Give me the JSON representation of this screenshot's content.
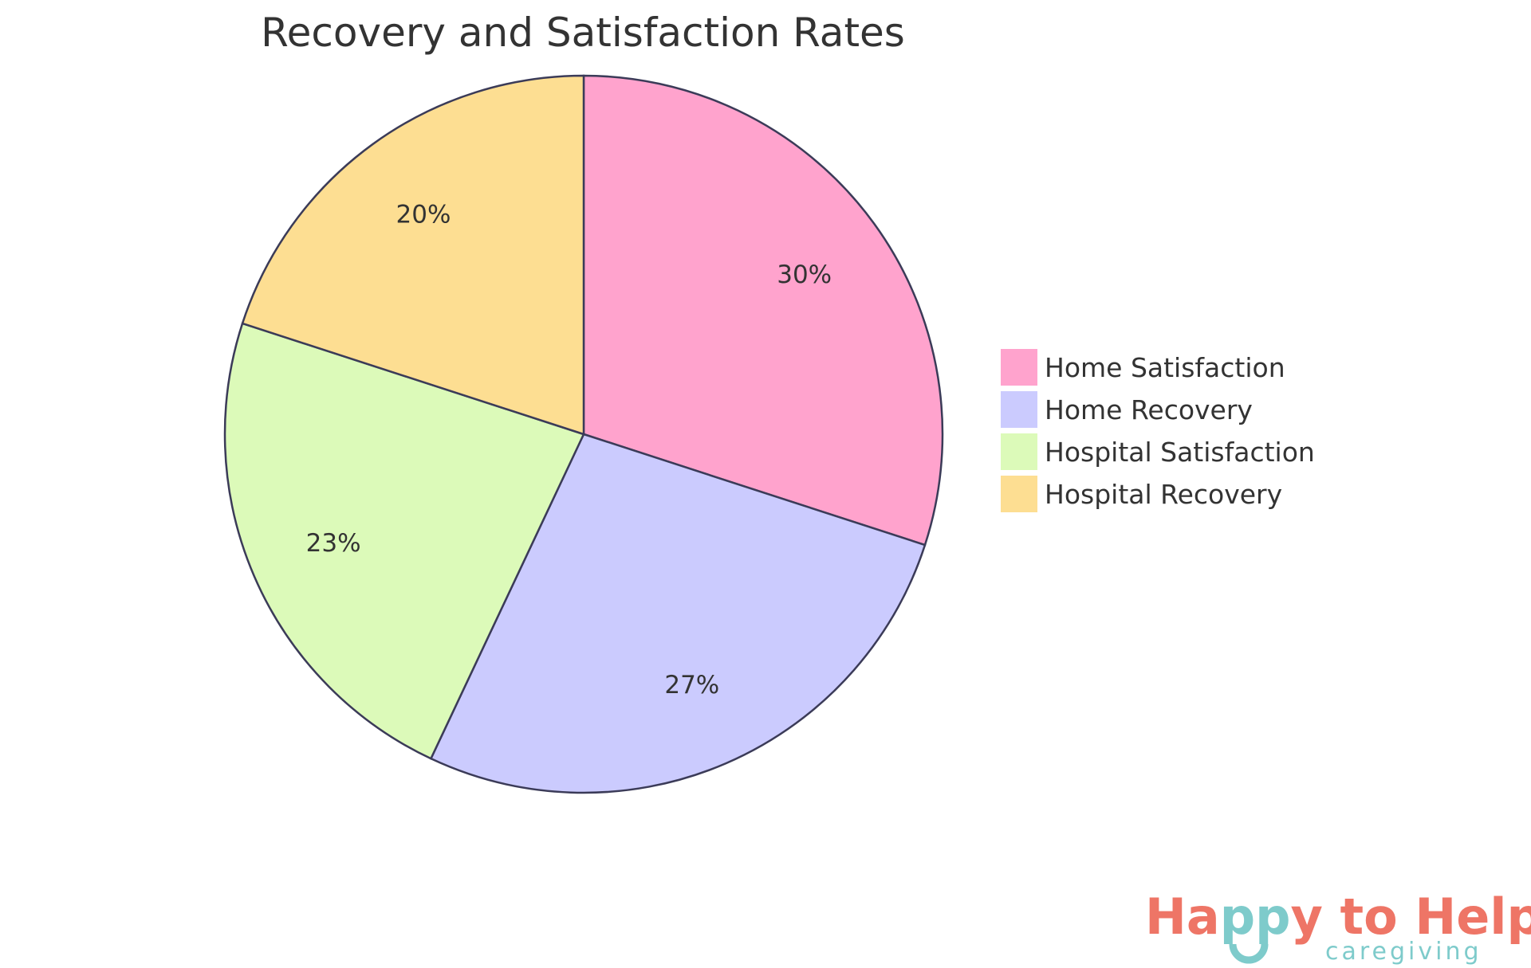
{
  "chart_data": {
    "type": "pie",
    "title": "Recovery and Satisfaction Rates",
    "legend_position": "right",
    "start_angle": "top, clockwise",
    "series": [
      {
        "name": "Home Satisfaction",
        "value": 30,
        "label": "30%",
        "color": "#ffa3cd"
      },
      {
        "name": "Home Recovery",
        "value": 27,
        "label": "27%",
        "color": "#cbcbfe"
      },
      {
        "name": "Hospital Satisfaction",
        "value": 23,
        "label": "23%",
        "color": "#dcfab9"
      },
      {
        "name": "Hospital Recovery",
        "value": 20,
        "label": "20%",
        "color": "#fdde92"
      }
    ],
    "stroke_color": "#3b3b58"
  },
  "logo": {
    "text_main": "Happy to Help",
    "text_sub": "caregiving",
    "colors": {
      "primary": "#ee7566",
      "secondary": "#7ecbcb"
    }
  }
}
